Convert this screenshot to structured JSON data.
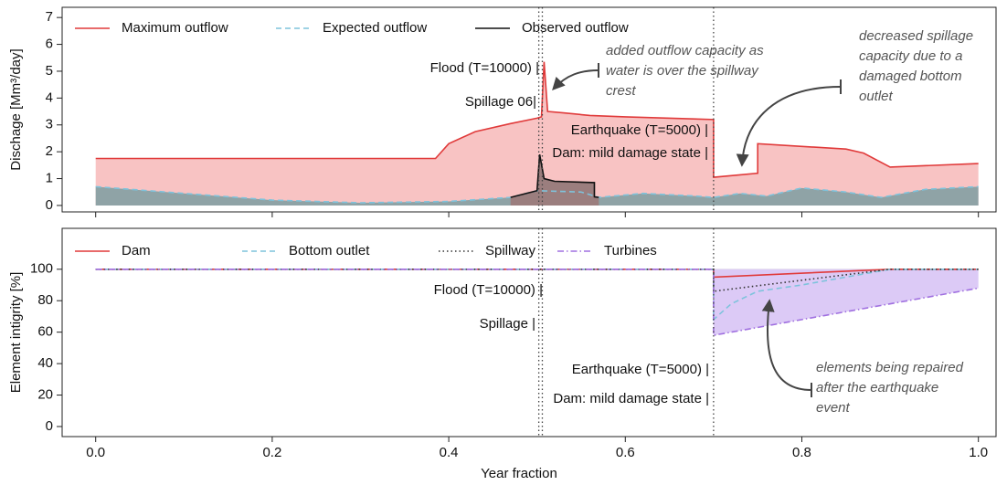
{
  "chart_data": [
    {
      "type": "area",
      "ylabel": "Dischage [Mm³/day]",
      "xlim": [
        -0.038,
        1.02
      ],
      "ylim": [
        -0.24,
        7.38
      ],
      "yticks": [
        0,
        1,
        2,
        3,
        4,
        5,
        6,
        7
      ],
      "vlines": [
        0.502,
        0.506,
        0.7
      ],
      "series": [
        {
          "name": "Maximum outflow",
          "color": "#e03a3a",
          "fill_color": "#f8c3c3",
          "dash": "solid",
          "fill": "below",
          "x": [
            0,
            0.385,
            0.4,
            0.43,
            0.47,
            0.5,
            0.505,
            0.508,
            0.512,
            0.53,
            0.56,
            0.6,
            0.7,
            0.7,
            0.75,
            0.75,
            0.8,
            0.85,
            0.87,
            0.9,
            1.0
          ],
          "values": [
            1.75,
            1.75,
            2.3,
            2.75,
            3.05,
            3.25,
            3.3,
            5.35,
            3.5,
            3.45,
            3.35,
            3.3,
            3.2,
            1.05,
            1.2,
            2.3,
            2.2,
            2.1,
            1.95,
            1.43,
            1.56
          ]
        },
        {
          "name": "Expected outflow",
          "color": "#7ec3dc",
          "fill_color": "#8fa3a6",
          "dash": "dashed",
          "fill": "below",
          "x": [
            0,
            0.1,
            0.2,
            0.3,
            0.4,
            0.47,
            0.5,
            0.55,
            0.57,
            0.62,
            0.68,
            0.7,
            0.73,
            0.76,
            0.8,
            0.85,
            0.89,
            0.94,
            1.0
          ],
          "values": [
            0.7,
            0.45,
            0.2,
            0.1,
            0.15,
            0.3,
            0.55,
            0.5,
            0.3,
            0.45,
            0.35,
            0.3,
            0.45,
            0.35,
            0.65,
            0.5,
            0.3,
            0.6,
            0.7
          ]
        },
        {
          "name": "Observed outflow",
          "color": "#111111",
          "fill_color": "#9b7e7e",
          "dash": "solid",
          "fill": "below",
          "x": [
            0.47,
            0.5,
            0.503,
            0.508,
            0.52,
            0.565,
            0.565,
            0.57
          ],
          "values": [
            0.3,
            0.55,
            1.9,
            1.0,
            0.9,
            0.85,
            0.32,
            0.3
          ]
        }
      ],
      "event_labels": [
        "Flood (T=10000) |",
        "Spillage 06|",
        "Earthquake (T=5000) |",
        "Dam: mild damage state |"
      ],
      "annotations": [
        {
          "lines": [
            "added outflow capacity as",
            "water is over the spillway",
            "crest"
          ]
        },
        {
          "lines": [
            "decreased spillage",
            "capacity due to a",
            "damaged bottom",
            "outlet"
          ]
        }
      ]
    },
    {
      "type": "area",
      "ylabel": "Element intigrity [%]",
      "xlabel": "Year fraction",
      "xlim": [
        -0.038,
        1.02
      ],
      "ylim": [
        -6.4,
        126
      ],
      "yticks": [
        0,
        20,
        40,
        60,
        80,
        100
      ],
      "xticks": [
        {
          "value": 0,
          "label": "0.0"
        },
        {
          "value": 0.2,
          "label": "0.2"
        },
        {
          "value": 0.4,
          "label": "0.4"
        },
        {
          "value": 0.6,
          "label": "0.6"
        },
        {
          "value": 0.8,
          "label": "0.8"
        },
        {
          "value": 1,
          "label": "1.0"
        }
      ],
      "vlines": [
        0.502,
        0.506,
        0.7
      ],
      "series": [
        {
          "name": "Dam",
          "color": "#e03a3a",
          "fill_color": "#a86a6a",
          "dash": "solid",
          "fill": "above",
          "x": [
            0,
            0.7,
            0.7,
            0.9,
            1.0
          ],
          "values": [
            100,
            100,
            95,
            100,
            100
          ]
        },
        {
          "name": "Bottom outlet",
          "color": "#7ec3dc",
          "fill_color": "#b3cde6",
          "dash": "dashed",
          "fill": "above",
          "x": [
            0,
            0.7,
            0.7,
            0.72,
            0.75,
            0.8,
            0.85,
            0.9,
            1.0
          ],
          "values": [
            100,
            100,
            68,
            78,
            86,
            90,
            95,
            100,
            100
          ]
        },
        {
          "name": "Spillway",
          "color": "#333333",
          "fill_color": "none",
          "dash": "dotted",
          "fill": "none",
          "x": [
            0,
            0.7,
            0.7,
            0.9,
            1.0
          ],
          "values": [
            100,
            100,
            86,
            100,
            100
          ]
        },
        {
          "name": "Turbines",
          "color": "#a070e0",
          "fill_color": "#dccaf6",
          "dash": "dashdot",
          "fill": "above",
          "x": [
            0,
            0.7,
            0.7,
            1.0
          ],
          "values": [
            100,
            100,
            58,
            88
          ]
        }
      ],
      "event_labels": [
        "Flood (T=10000) |",
        "Spillage |",
        "Earthquake (T=5000) |",
        "Dam: mild damage state |"
      ],
      "annotations": [
        {
          "lines": [
            "elements being repaired",
            "after the earthquake",
            "event"
          ]
        }
      ]
    }
  ]
}
